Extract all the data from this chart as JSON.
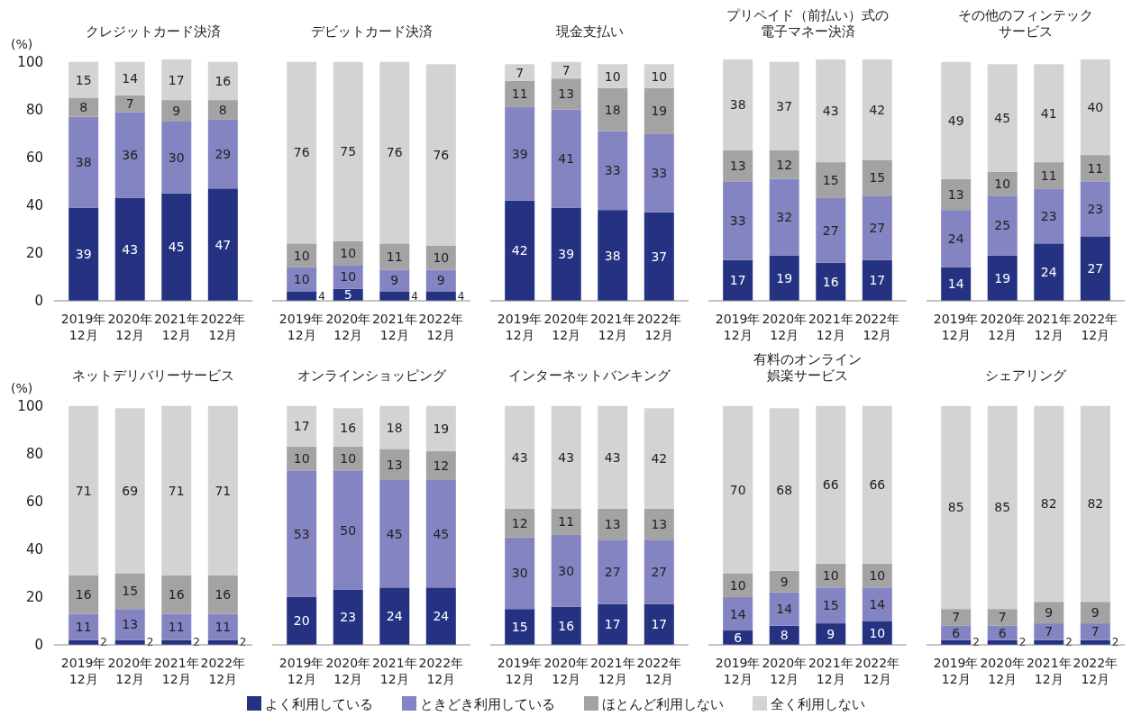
{
  "chart_data": [
    {
      "type": "bar",
      "stacked": true,
      "title": "クレジットカード決済",
      "ylabel": "(%)",
      "categories": [
        "2019年\n12月",
        "2020年\n12月",
        "2021年\n12月",
        "2022年\n12月"
      ],
      "ylim": [
        0,
        101
      ],
      "yticks": [
        0,
        20,
        40,
        60,
        80,
        100
      ],
      "data_labels": true,
      "legend": "bottom",
      "series": [
        {
          "name": "よく利用している",
          "color": "#253282",
          "values": [
            39,
            43,
            45,
            47
          ]
        },
        {
          "name": "ときどき利用している",
          "color": "#8484c2",
          "values": [
            38,
            36,
            30,
            29
          ]
        },
        {
          "name": "ほとんど利用しない",
          "color": "#a3a3a3",
          "values": [
            8,
            7,
            9,
            8
          ]
        },
        {
          "name": "全く利用しない",
          "color": "#d3d3d3",
          "values": [
            15,
            14,
            17,
            16
          ]
        }
      ]
    },
    {
      "type": "bar",
      "stacked": true,
      "title": "デビットカード決済",
      "categories": [
        "2019年\n12月",
        "2020年\n12月",
        "2021年\n12月",
        "2022年\n12月"
      ],
      "ylim": [
        0,
        101
      ],
      "tick_labels": "x",
      "data_labels": true,
      "series": [
        {
          "color": "#253282",
          "values": [
            4,
            5,
            4,
            4
          ]
        },
        {
          "color": "#8484c2",
          "values": [
            10,
            10,
            9,
            9
          ]
        },
        {
          "color": "#a3a3a3",
          "values": [
            10,
            10,
            11,
            10
          ]
        },
        {
          "color": "#d3d3d3",
          "values": [
            76,
            75,
            76,
            76
          ]
        }
      ]
    },
    {
      "type": "bar",
      "stacked": true,
      "title": "現金支払い",
      "categories": [
        "2019年\n12月",
        "2020年\n12月",
        "2021年\n12月",
        "2022年\n12月"
      ],
      "ylim": [
        0,
        101
      ],
      "tick_labels": "x",
      "data_labels": true,
      "series": [
        {
          "color": "#253282",
          "values": [
            42,
            39,
            38,
            37
          ]
        },
        {
          "color": "#8484c2",
          "values": [
            39,
            41,
            33,
            33
          ]
        },
        {
          "color": "#a3a3a3",
          "values": [
            11,
            13,
            18,
            19
          ]
        },
        {
          "color": "#d3d3d3",
          "values": [
            7,
            7,
            10,
            10
          ]
        }
      ]
    },
    {
      "type": "bar",
      "stacked": true,
      "title": "プリペイド（前払い）式の",
      "subtitle": "電子マネー決済",
      "categories": [
        "2019年\n12月",
        "2020年\n12月",
        "2021年\n12月",
        "2022年\n12月"
      ],
      "ylim": [
        0,
        101
      ],
      "tick_labels": "x",
      "data_labels": true,
      "series": [
        {
          "color": "#253282",
          "values": [
            17,
            19,
            16,
            17
          ]
        },
        {
          "color": "#8484c2",
          "values": [
            33,
            32,
            27,
            27
          ]
        },
        {
          "color": "#a3a3a3",
          "values": [
            13,
            12,
            15,
            15
          ]
        },
        {
          "color": "#d3d3d3",
          "values": [
            38,
            37,
            43,
            42
          ]
        }
      ]
    },
    {
      "type": "bar",
      "stacked": true,
      "title": "その他のフィンテック",
      "subtitle": "サービス",
      "categories": [
        "2019年\n12月",
        "2020年\n12月",
        "2021年\n12月",
        "2022年\n12月"
      ],
      "ylim": [
        0,
        101
      ],
      "tick_labels": "x",
      "data_labels": true,
      "series": [
        {
          "color": "#253282",
          "values": [
            14,
            19,
            24,
            27
          ]
        },
        {
          "color": "#8484c2",
          "values": [
            24,
            25,
            23,
            23
          ]
        },
        {
          "color": "#a3a3a3",
          "values": [
            13,
            10,
            11,
            11
          ]
        },
        {
          "color": "#d3d3d3",
          "values": [
            49,
            45,
            41,
            40
          ]
        }
      ]
    },
    {
      "type": "bar",
      "stacked": true,
      "title": "ネットデリバリーサービス",
      "ylabel": "(%)",
      "categories": [
        "2019年\n12月",
        "2020年\n12月",
        "2021年\n12月",
        "2022年\n12月"
      ],
      "ylim": [
        0,
        101
      ],
      "yticks": [
        0,
        20,
        40,
        60,
        80,
        100
      ],
      "data_labels": true,
      "series": [
        {
          "color": "#253282",
          "values": [
            2,
            2,
            2,
            2
          ]
        },
        {
          "color": "#8484c2",
          "values": [
            11,
            13,
            11,
            11
          ]
        },
        {
          "color": "#a3a3a3",
          "values": [
            16,
            15,
            16,
            16
          ]
        },
        {
          "color": "#d3d3d3",
          "values": [
            71,
            69,
            71,
            71
          ]
        }
      ]
    },
    {
      "type": "bar",
      "stacked": true,
      "title": "オンラインショッピング",
      "categories": [
        "2019年\n12月",
        "2020年\n12月",
        "2021年\n12月",
        "2022年\n12月"
      ],
      "ylim": [
        0,
        101
      ],
      "tick_labels": "x",
      "data_labels": true,
      "series": [
        {
          "color": "#253282",
          "values": [
            20,
            23,
            24,
            24
          ]
        },
        {
          "color": "#8484c2",
          "values": [
            53,
            50,
            45,
            45
          ]
        },
        {
          "color": "#a3a3a3",
          "values": [
            10,
            10,
            13,
            12
          ]
        },
        {
          "color": "#d3d3d3",
          "values": [
            17,
            16,
            18,
            19
          ]
        }
      ]
    },
    {
      "type": "bar",
      "stacked": true,
      "title": "インターネットバンキング",
      "categories": [
        "2019年\n12月",
        "2020年\n12月",
        "2021年\n12月",
        "2022年\n12月"
      ],
      "ylim": [
        0,
        101
      ],
      "tick_labels": "x",
      "data_labels": true,
      "series": [
        {
          "color": "#253282",
          "values": [
            15,
            16,
            17,
            17
          ]
        },
        {
          "color": "#8484c2",
          "values": [
            30,
            30,
            27,
            27
          ]
        },
        {
          "color": "#a3a3a3",
          "values": [
            12,
            11,
            13,
            13
          ]
        },
        {
          "color": "#d3d3d3",
          "values": [
            43,
            43,
            43,
            42
          ]
        }
      ]
    },
    {
      "type": "bar",
      "stacked": true,
      "title": "有料のオンライン",
      "subtitle": "娯楽サービス",
      "categories": [
        "2019年\n12月",
        "2020年\n12月",
        "2021年\n12月",
        "2022年\n12月"
      ],
      "ylim": [
        0,
        101
      ],
      "tick_labels": "x",
      "data_labels": true,
      "series": [
        {
          "color": "#253282",
          "values": [
            6,
            8,
            9,
            10
          ]
        },
        {
          "color": "#8484c2",
          "values": [
            14,
            14,
            15,
            14
          ]
        },
        {
          "color": "#a3a3a3",
          "values": [
            10,
            9,
            10,
            10
          ]
        },
        {
          "color": "#d3d3d3",
          "values": [
            70,
            68,
            66,
            66
          ]
        }
      ]
    },
    {
      "type": "bar",
      "stacked": true,
      "title": "シェアリング",
      "categories": [
        "2019年\n12月",
        "2020年\n12月",
        "2021年\n12月",
        "2022年\n12月"
      ],
      "ylim": [
        0,
        101
      ],
      "tick_labels": "x",
      "data_labels": true,
      "series": [
        {
          "color": "#253282",
          "values": [
            2,
            2,
            2,
            2
          ]
        },
        {
          "color": "#8484c2",
          "values": [
            6,
            6,
            7,
            7
          ]
        },
        {
          "color": "#a3a3a3",
          "values": [
            7,
            7,
            9,
            9
          ]
        },
        {
          "color": "#d3d3d3",
          "values": [
            85,
            85,
            82,
            82
          ]
        }
      ]
    }
  ]
}
